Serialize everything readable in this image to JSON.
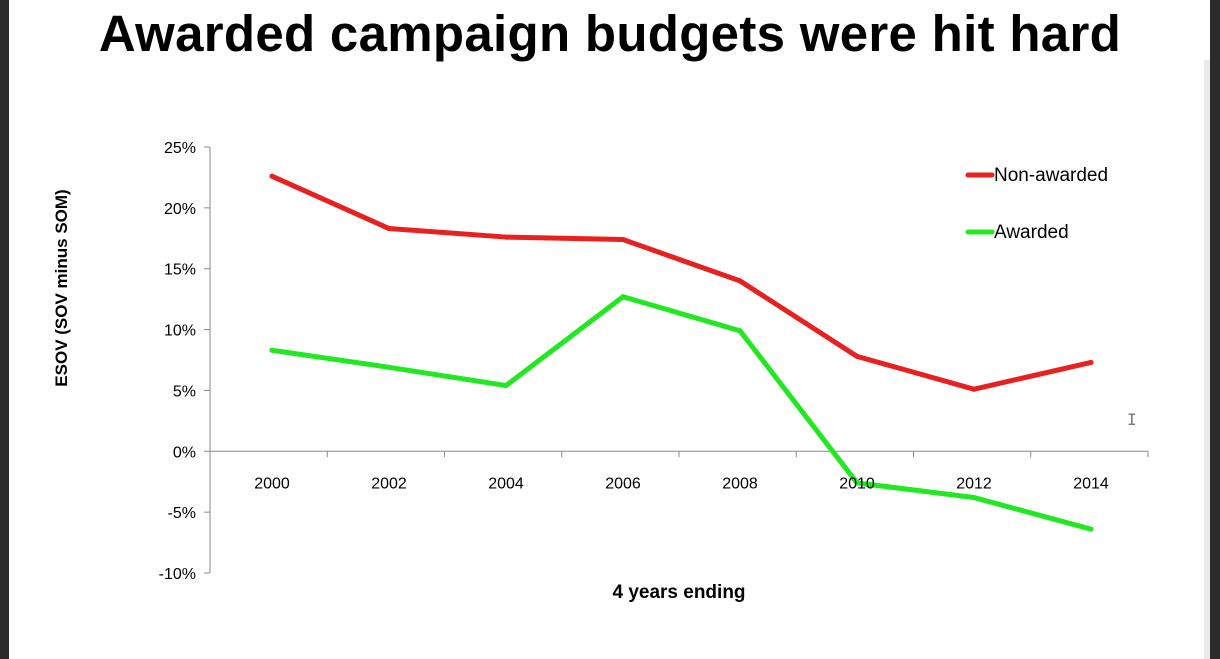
{
  "chart_data": {
    "type": "line",
    "title": "Awarded campaign budgets were hit hard",
    "xlabel": "4 years ending",
    "ylabel": "ESOV (SOV minus SOM)",
    "categories": [
      "2000",
      "2002",
      "2004",
      "2006",
      "2008",
      "2010",
      "2012",
      "2014"
    ],
    "ylim": [
      -10,
      25
    ],
    "yticks": [
      25,
      20,
      15,
      10,
      5,
      0,
      -5,
      -10
    ],
    "ytick_labels": [
      "25%",
      "20%",
      "15%",
      "10%",
      "5%",
      "0%",
      "-5%",
      "-10%"
    ],
    "grid": false,
    "legend_position": "top-right",
    "series": [
      {
        "name": "Non-awarded",
        "color": "#e82020",
        "values": [
          22.6,
          18.3,
          17.6,
          17.4,
          14.0,
          7.8,
          5.1,
          7.3
        ]
      },
      {
        "name": "Awarded",
        "color": "#22e822",
        "values": [
          8.3,
          6.9,
          5.4,
          12.7,
          9.9,
          -2.6,
          -3.8,
          -6.4
        ]
      }
    ]
  }
}
